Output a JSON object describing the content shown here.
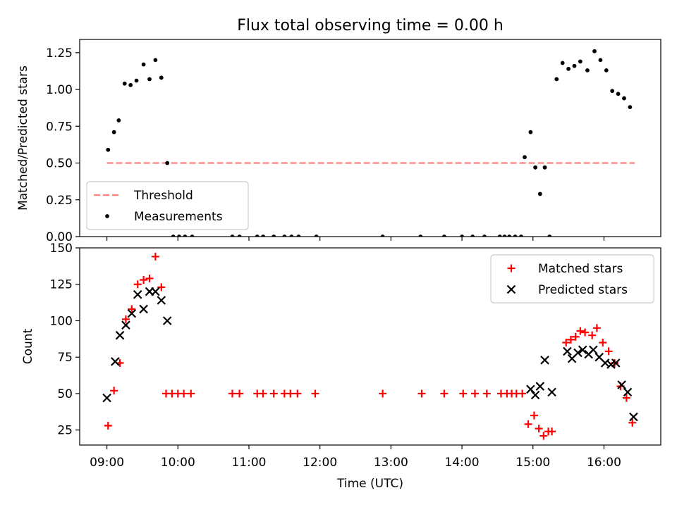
{
  "title": "Flux total observing time = 0.00 h",
  "chart_data": [
    {
      "type": "scatter",
      "ylabel": "Matched/Predicted stars",
      "xlim": [
        "08:37",
        "16:48"
      ],
      "ylim": [
        0,
        1.34
      ],
      "yticks": [
        0.0,
        0.25,
        0.5,
        0.75,
        1.0,
        1.25
      ],
      "ytick_labels": [
        "0.00",
        "0.25",
        "0.50",
        "0.75",
        "1.00",
        "1.25"
      ],
      "legend_position": "lower-left",
      "series": [
        {
          "name": "Threshold",
          "style": "dashed-line",
          "color": "#ff7f7f",
          "points": [
            [
              "09:00",
              0.5
            ],
            [
              "16:26",
              0.5
            ]
          ]
        },
        {
          "name": "Measurements",
          "style": "dot",
          "color": "#000000",
          "points": [
            [
              "09:01",
              0.59
            ],
            [
              "09:06",
              0.71
            ],
            [
              "09:10",
              0.79
            ],
            [
              "09:15",
              1.04
            ],
            [
              "09:20",
              1.03
            ],
            [
              "09:25",
              1.06
            ],
            [
              "09:31",
              1.17
            ],
            [
              "09:36",
              1.07
            ],
            [
              "09:41",
              1.2
            ],
            [
              "09:46",
              1.08
            ],
            [
              "09:51",
              0.5
            ],
            [
              "09:56",
              0.0
            ],
            [
              "10:01",
              0.0
            ],
            [
              "10:06",
              0.0
            ],
            [
              "10:12",
              0.0
            ],
            [
              "10:46",
              0.0
            ],
            [
              "10:52",
              0.0
            ],
            [
              "11:07",
              0.0
            ],
            [
              "11:12",
              0.0
            ],
            [
              "11:21",
              0.0
            ],
            [
              "11:30",
              0.0
            ],
            [
              "11:36",
              0.0
            ],
            [
              "11:42",
              0.0
            ],
            [
              "11:57",
              0.0
            ],
            [
              "12:53",
              0.0
            ],
            [
              "13:25",
              0.0
            ],
            [
              "13:45",
              0.0
            ],
            [
              "14:00",
              0.0
            ],
            [
              "14:09",
              0.0
            ],
            [
              "14:19",
              0.0
            ],
            [
              "14:32",
              0.0
            ],
            [
              "14:36",
              0.0
            ],
            [
              "14:40",
              0.0
            ],
            [
              "14:45",
              0.0
            ],
            [
              "14:50",
              0.0
            ],
            [
              "14:53",
              0.54
            ],
            [
              "14:58",
              0.71
            ],
            [
              "15:02",
              0.47
            ],
            [
              "15:06",
              0.29
            ],
            [
              "15:10",
              0.47
            ],
            [
              "15:14",
              0.0
            ],
            [
              "15:20",
              1.07
            ],
            [
              "15:25",
              1.18
            ],
            [
              "15:30",
              1.14
            ],
            [
              "15:35",
              1.16
            ],
            [
              "15:40",
              1.19
            ],
            [
              "15:46",
              1.13
            ],
            [
              "15:52",
              1.26
            ],
            [
              "15:57",
              1.2
            ],
            [
              "16:02",
              1.13
            ],
            [
              "16:07",
              0.99
            ],
            [
              "16:12",
              0.97
            ],
            [
              "16:17",
              0.94
            ],
            [
              "16:22",
              0.88
            ]
          ]
        }
      ]
    },
    {
      "type": "scatter",
      "xlabel": "Time (UTC)",
      "ylabel": "Count",
      "xlim": [
        "08:37",
        "16:48"
      ],
      "ylim": [
        14.7,
        150
      ],
      "xticks": [
        "09:00",
        "10:00",
        "11:00",
        "12:00",
        "13:00",
        "14:00",
        "15:00",
        "16:00"
      ],
      "yticks": [
        25,
        50,
        75,
        100,
        125,
        150
      ],
      "ytick_labels": [
        "25",
        "50",
        "75",
        "100",
        "125",
        "150"
      ],
      "legend_position": "upper-right",
      "series": [
        {
          "name": "Matched stars",
          "style": "plus",
          "color": "#ff0000",
          "points": [
            [
              "09:01",
              28
            ],
            [
              "09:06",
              52
            ],
            [
              "09:11",
              71
            ],
            [
              "09:16",
              101
            ],
            [
              "09:21",
              108
            ],
            [
              "09:26",
              125
            ],
            [
              "09:31",
              128
            ],
            [
              "09:36",
              129
            ],
            [
              "09:41",
              144
            ],
            [
              "09:46",
              123
            ],
            [
              "09:50",
              50
            ],
            [
              "09:55",
              50
            ],
            [
              "10:00",
              50
            ],
            [
              "10:05",
              50
            ],
            [
              "10:11",
              50
            ],
            [
              "10:46",
              50
            ],
            [
              "10:52",
              50
            ],
            [
              "11:07",
              50
            ],
            [
              "11:12",
              50
            ],
            [
              "11:21",
              50
            ],
            [
              "11:30",
              50
            ],
            [
              "11:35",
              50
            ],
            [
              "11:41",
              50
            ],
            [
              "11:56",
              50
            ],
            [
              "12:53",
              50
            ],
            [
              "13:26",
              50
            ],
            [
              "13:45",
              50
            ],
            [
              "14:01",
              50
            ],
            [
              "14:11",
              50
            ],
            [
              "14:21",
              50
            ],
            [
              "14:33",
              50
            ],
            [
              "14:38",
              50
            ],
            [
              "14:42",
              50
            ],
            [
              "14:46",
              50
            ],
            [
              "14:51",
              50
            ],
            [
              "14:56",
              29
            ],
            [
              "15:01",
              35
            ],
            [
              "15:05",
              26
            ],
            [
              "15:09",
              21
            ],
            [
              "15:13",
              24
            ],
            [
              "15:16",
              24
            ],
            [
              "15:28",
              85
            ],
            [
              "15:32",
              87
            ],
            [
              "15:36",
              89
            ],
            [
              "15:40",
              93
            ],
            [
              "15:44",
              92
            ],
            [
              "15:50",
              90
            ],
            [
              "15:54",
              95
            ],
            [
              "15:59",
              85
            ],
            [
              "16:04",
              79
            ],
            [
              "16:09",
              71
            ],
            [
              "16:14",
              55
            ],
            [
              "16:19",
              47
            ],
            [
              "16:24",
              30
            ]
          ]
        },
        {
          "name": "Predicted stars",
          "style": "x",
          "color": "#000000",
          "points": [
            [
              "09:00",
              47
            ],
            [
              "09:07",
              72
            ],
            [
              "09:11",
              90
            ],
            [
              "09:16",
              97
            ],
            [
              "09:21",
              105
            ],
            [
              "09:26",
              118
            ],
            [
              "09:31",
              108
            ],
            [
              "09:36",
              120
            ],
            [
              "09:41",
              120
            ],
            [
              "09:46",
              114
            ],
            [
              "09:51",
              100
            ],
            [
              "14:58",
              53
            ],
            [
              "15:02",
              49
            ],
            [
              "15:06",
              55
            ],
            [
              "15:10",
              73
            ],
            [
              "15:16",
              51
            ],
            [
              "15:29",
              79
            ],
            [
              "15:33",
              74
            ],
            [
              "15:38",
              78
            ],
            [
              "15:42",
              80
            ],
            [
              "15:47",
              77
            ],
            [
              "15:51",
              80
            ],
            [
              "15:56",
              75
            ],
            [
              "16:01",
              71
            ],
            [
              "16:06",
              70
            ],
            [
              "16:10",
              71
            ],
            [
              "16:15",
              56
            ],
            [
              "16:20",
              51
            ],
            [
              "16:25",
              34
            ]
          ]
        }
      ]
    }
  ]
}
